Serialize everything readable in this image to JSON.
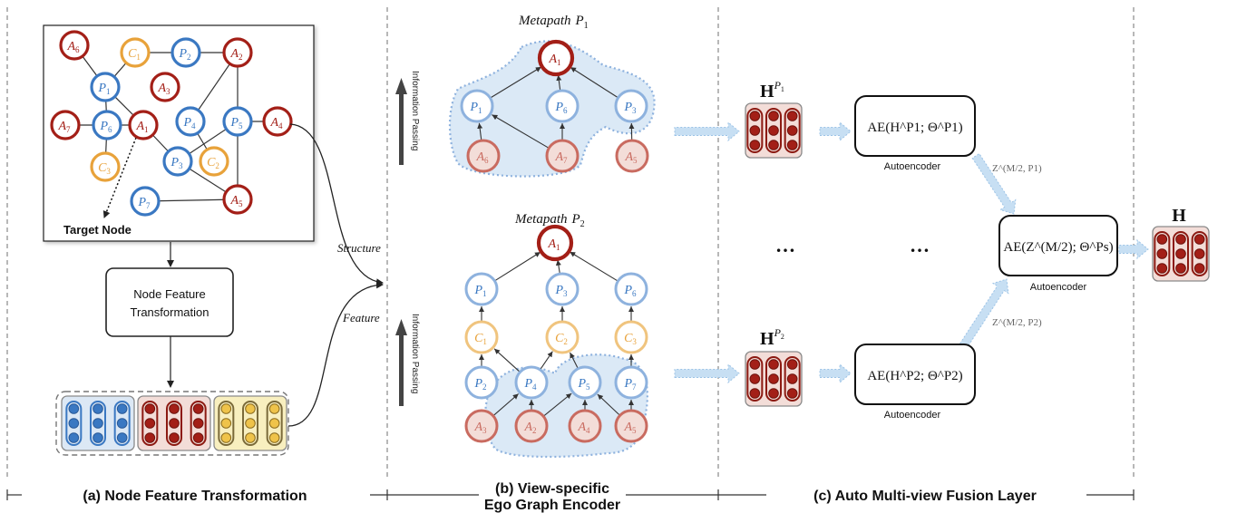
{
  "colors": {
    "author_stroke": "#a31f17",
    "author_light_stroke": "#c96b60",
    "author_light_fill": "#f3ddd8",
    "paper_stroke": "#3a78c2",
    "paper_light_stroke": "#8eb2de",
    "conf_stroke": "#e8a23a",
    "conf_light_stroke": "#f0c47e",
    "ego_fill": "#dbe9f6",
    "arrow_fill": "#c7dff3"
  },
  "graph": {
    "nodes": [
      {
        "sym": "A",
        "sub": "6",
        "kind": "author"
      },
      {
        "sym": "C",
        "sub": "1",
        "kind": "conf"
      },
      {
        "sym": "P",
        "sub": "2",
        "kind": "paper"
      },
      {
        "sym": "A",
        "sub": "2",
        "kind": "author"
      },
      {
        "sym": "P",
        "sub": "1",
        "kind": "paper"
      },
      {
        "sym": "A",
        "sub": "3",
        "kind": "author"
      },
      {
        "sym": "A",
        "sub": "7",
        "kind": "author"
      },
      {
        "sym": "P",
        "sub": "6",
        "kind": "paper"
      },
      {
        "sym": "A",
        "sub": "1",
        "kind": "author"
      },
      {
        "sym": "P",
        "sub": "4",
        "kind": "paper"
      },
      {
        "sym": "P",
        "sub": "5",
        "kind": "paper"
      },
      {
        "sym": "A",
        "sub": "4",
        "kind": "author"
      },
      {
        "sym": "C",
        "sub": "3",
        "kind": "conf"
      },
      {
        "sym": "P",
        "sub": "3",
        "kind": "paper"
      },
      {
        "sym": "C",
        "sub": "2",
        "kind": "conf"
      },
      {
        "sym": "P",
        "sub": "7",
        "kind": "paper"
      },
      {
        "sym": "A",
        "sub": "5",
        "kind": "author"
      }
    ],
    "target_label": "Target Node"
  },
  "transform_box": {
    "line1": "Node Feature",
    "line2": "Transformation"
  },
  "arrow_labels": {
    "structure": "Structure",
    "feature": "Feature"
  },
  "metapath1": {
    "title": "Metapath",
    "title_sym": "P",
    "title_sub": "1",
    "passing_label": "Information Passing",
    "root": {
      "sym": "A",
      "sub": "1"
    },
    "middle": [
      {
        "sym": "P",
        "sub": "1"
      },
      {
        "sym": "P",
        "sub": "6"
      },
      {
        "sym": "P",
        "sub": "3"
      }
    ],
    "bottom": [
      {
        "sym": "A",
        "sub": "6"
      },
      {
        "sym": "A",
        "sub": "7"
      },
      {
        "sym": "A",
        "sub": "5"
      }
    ]
  },
  "metapath2": {
    "title": "Metapath",
    "title_sym": "P",
    "title_sub": "2",
    "passing_label": "Information Passing",
    "root": {
      "sym": "A",
      "sub": "1"
    },
    "level1": [
      {
        "sym": "P",
        "sub": "1"
      },
      {
        "sym": "P",
        "sub": "3"
      },
      {
        "sym": "P",
        "sub": "6"
      }
    ],
    "level2": [
      {
        "sym": "C",
        "sub": "1"
      },
      {
        "sym": "C",
        "sub": "2"
      },
      {
        "sym": "C",
        "sub": "3"
      }
    ],
    "level3": [
      {
        "sym": "P",
        "sub": "2"
      },
      {
        "sym": "P",
        "sub": "4"
      },
      {
        "sym": "P",
        "sub": "5"
      },
      {
        "sym": "P",
        "sub": "7"
      }
    ],
    "level4": [
      {
        "sym": "A",
        "sub": "3"
      },
      {
        "sym": "A",
        "sub": "2"
      },
      {
        "sym": "A",
        "sub": "4"
      },
      {
        "sym": "A",
        "sub": "5"
      }
    ]
  },
  "fusion": {
    "h1_sym": "H",
    "h1_sup": "P",
    "h1_supsub": "1",
    "h2_sym": "H",
    "h2_sup": "P",
    "h2_supsub": "2",
    "ae1_text": "AE(H^P1; Θ^P1)",
    "ae2_text": "AE(H^P2; Θ^P2)",
    "ae3_text": "AE(Z^(M/2); Θ^Ps)",
    "z1_label": "Z^(M/2, P1)",
    "z2_label": "Z^(M/2, P2)",
    "autoencoder_label": "Autoencoder",
    "ellipsis": "…",
    "output_sym": "H"
  },
  "captions": {
    "a": "(a) Node Feature Transformation",
    "b_line1": "(b) View-specific",
    "b_line2": "Ego Graph Encoder",
    "c": "(c) Auto Multi-view Fusion Layer"
  }
}
